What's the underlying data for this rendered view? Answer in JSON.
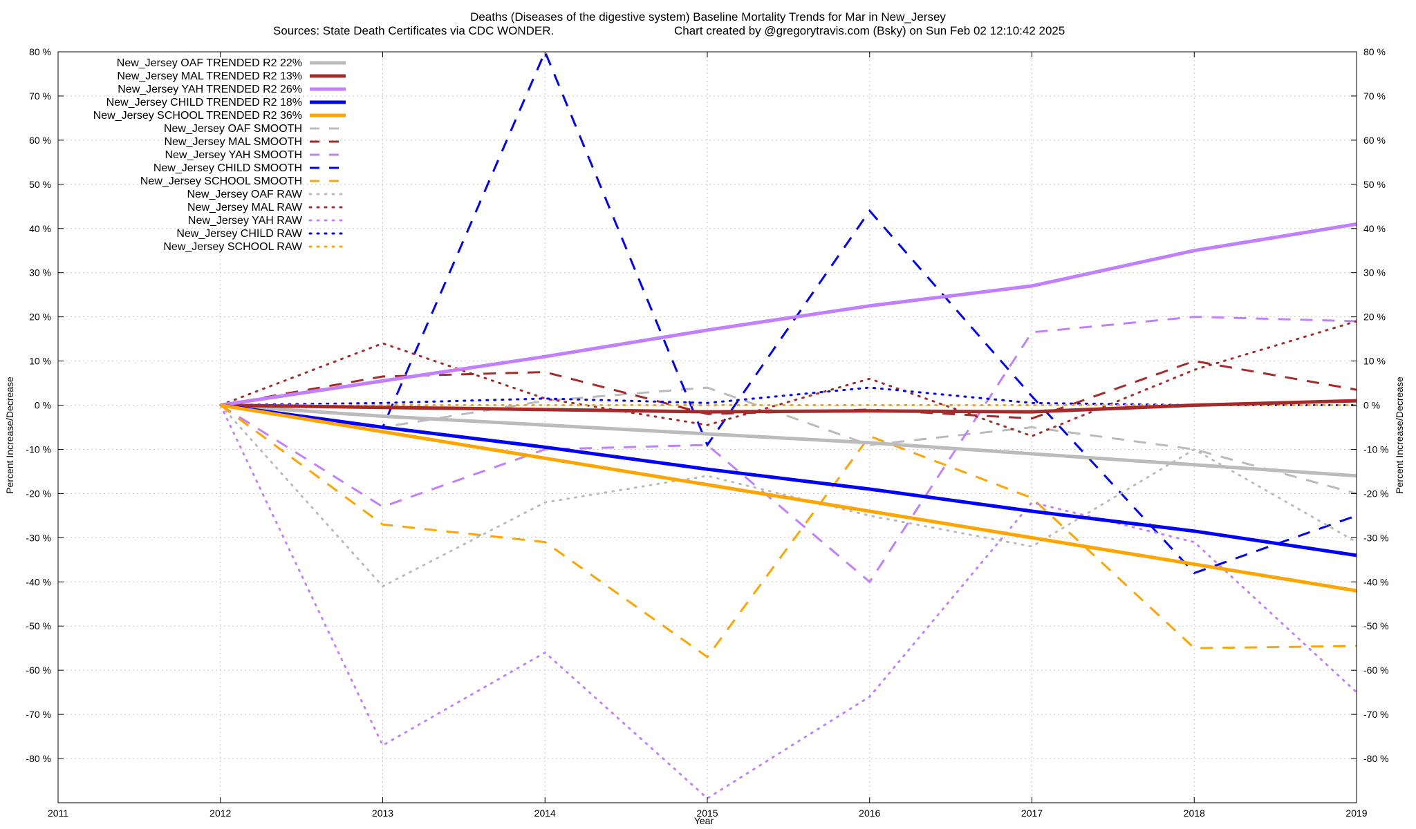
{
  "chart_data": {
    "type": "line",
    "title": "Deaths (Diseases of the digestive system)  Baseline Mortality Trends for Mar in New_Jersey",
    "subtitle_left": "Sources: State Death Certificates via CDC WONDER.",
    "subtitle_right": "Chart created by @gregorytravis.com (Bsky) on Sun Feb 02 12:10:42 2025",
    "xlabel": "Year",
    "ylabel_left": "Percent Increase/Decrease",
    "ylabel_right": "Percent Increase/Decrease",
    "xlim": [
      2011,
      2019
    ],
    "ylim": [
      -90,
      80
    ],
    "x_ticks": [
      "2011",
      "2012",
      "2013",
      "2014",
      "2015",
      "2016",
      "2017",
      "2018",
      "2019"
    ],
    "y_ticks": [
      80,
      70,
      60,
      50,
      40,
      30,
      20,
      10,
      0,
      -10,
      -20,
      -30,
      -40,
      -50,
      -60,
      -70,
      -80
    ],
    "y_tick_labels": [
      "80 %",
      "70 %",
      "60 %",
      "50 %",
      "40 %",
      "30 %",
      "20 %",
      "10 %",
      "0 %",
      "-10 %",
      "-20 %",
      "-30 %",
      "-40 %",
      "-50 %",
      "-60 %",
      "-70 %",
      "-80 %"
    ],
    "grid": true,
    "legend_position": "top-left",
    "x": [
      2012,
      2013,
      2014,
      2015,
      2016,
      2017,
      2018,
      2019
    ],
    "series": [
      {
        "name": "New_Jersey OAF TRENDED R2  22%",
        "style": "trend",
        "color": "#bbbbbb",
        "values": [
          0,
          -2.5,
          -4.5,
          -6.5,
          -8.5,
          -11.0,
          -13.5,
          -16.0
        ]
      },
      {
        "name": "New_Jersey MAL TRENDED R2  13%",
        "style": "trend",
        "color": "#a52a2a",
        "values": [
          0,
          -0.5,
          -1.0,
          -1.5,
          -1.3,
          -1.5,
          0,
          1.0
        ]
      },
      {
        "name": "New_Jersey YAH TRENDED R2  26%",
        "style": "trend",
        "color": "#c080ff",
        "values": [
          0,
          5.5,
          11.0,
          17.0,
          22.5,
          27.0,
          35.0,
          41.0
        ]
      },
      {
        "name": "New_Jersey CHILD TRENDED R2  18%",
        "style": "trend",
        "color": "#0000ff",
        "values": [
          0,
          -5.0,
          -9.5,
          -14.5,
          -19.0,
          -24.0,
          -28.5,
          -34.0
        ]
      },
      {
        "name": "New_Jersey SCHOOL TRENDED R2  36%",
        "style": "trend",
        "color": "#ffa500",
        "values": [
          0,
          -6.0,
          -12.0,
          -18.0,
          -24.0,
          -30.0,
          -36.0,
          -42.0
        ]
      },
      {
        "name": "New_Jersey OAF SMOOTH",
        "style": "smooth",
        "color": "#bbbbbb",
        "values": [
          0,
          -5.0,
          1.0,
          4.0,
          -9.0,
          -5.0,
          -10.0,
          -20.0
        ]
      },
      {
        "name": "New_Jersey MAL SMOOTH",
        "style": "smooth",
        "color": "#a52a2a",
        "values": [
          0,
          6.5,
          7.5,
          -2.0,
          -1.0,
          -3.0,
          10.0,
          3.5
        ]
      },
      {
        "name": "New_Jersey YAH SMOOTH",
        "style": "smooth",
        "color": "#c080ff",
        "values": [
          0,
          -23.0,
          -10.0,
          -9.0,
          -40.0,
          16.5,
          20.0,
          19.0
        ]
      },
      {
        "name": "New_Jersey CHILD SMOOTH",
        "style": "smooth",
        "color": "#0000ff",
        "values": [
          0,
          -5.0,
          80.0,
          -9.0,
          44.0,
          2.0,
          -38.0,
          -25.0
        ]
      },
      {
        "name": "New_Jersey SCHOOL SMOOTH",
        "style": "smooth",
        "color": "#ffa500",
        "values": [
          0,
          -27.0,
          -31.0,
          -57.0,
          -7.0,
          -21.0,
          -55.0,
          -54.5
        ]
      },
      {
        "name": "New_Jersey OAF RAW",
        "style": "raw",
        "color": "#bbbbbb",
        "values": [
          0,
          -41.0,
          -22.0,
          -16.0,
          -25.0,
          -32.0,
          -10.0,
          -31.0
        ]
      },
      {
        "name": "New_Jersey MAL RAW",
        "style": "raw",
        "color": "#a52a2a",
        "values": [
          0,
          14.0,
          1.5,
          -4.5,
          6.0,
          -7.0,
          8.0,
          19.0
        ]
      },
      {
        "name": "New_Jersey YAH RAW",
        "style": "raw",
        "color": "#c080ff",
        "values": [
          0,
          -77.0,
          -56.0,
          -89.0,
          -66.0,
          -22.0,
          -31.0,
          -65.0
        ]
      },
      {
        "name": "New_Jersey CHILD RAW",
        "style": "raw",
        "color": "#0000ff",
        "values": [
          0,
          0.5,
          1.5,
          0.5,
          4.0,
          0.5,
          0,
          0
        ]
      },
      {
        "name": "New_Jersey SCHOOL RAW",
        "style": "raw",
        "color": "#ffa500",
        "values": [
          0,
          0,
          0,
          0,
          0,
          0,
          0,
          0
        ]
      }
    ]
  }
}
